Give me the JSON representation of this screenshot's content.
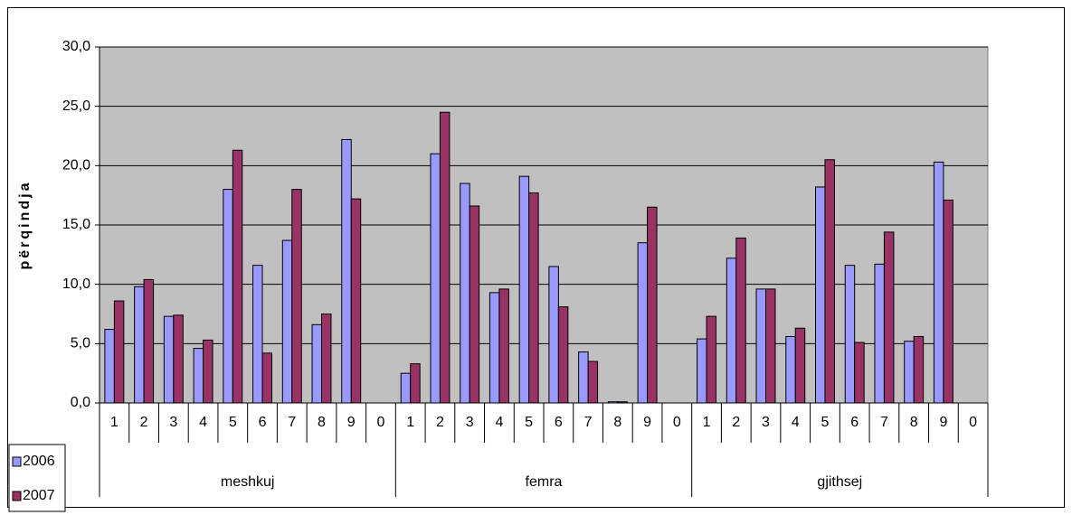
{
  "chart_data": {
    "type": "bar",
    "y_label": "përqindja",
    "categories": [
      "1",
      "2",
      "3",
      "4",
      "5",
      "6",
      "7",
      "8",
      "9",
      "0",
      "1",
      "2",
      "3",
      "4",
      "5",
      "6",
      "7",
      "8",
      "9",
      "0",
      "1",
      "2",
      "3",
      "4",
      "5",
      "6",
      "7",
      "8",
      "9",
      "0"
    ],
    "groups": [
      "meshkuj",
      "femra",
      "gjithsej"
    ],
    "series": [
      {
        "name": "2006",
        "color": "#9999ff",
        "values": [
          6.2,
          9.8,
          7.3,
          4.6,
          18.0,
          11.6,
          13.7,
          6.6,
          22.2,
          0,
          2.5,
          21.0,
          18.5,
          9.3,
          19.1,
          11.5,
          4.3,
          0.1,
          13.5,
          0,
          5.4,
          12.2,
          9.6,
          5.6,
          18.2,
          11.6,
          11.7,
          5.2,
          20.3,
          0
        ]
      },
      {
        "name": "2007",
        "color": "#993366",
        "values": [
          8.6,
          10.4,
          7.4,
          5.3,
          21.3,
          4.2,
          18.0,
          7.5,
          17.2,
          0,
          3.3,
          24.5,
          16.6,
          9.6,
          17.7,
          8.1,
          3.5,
          0.1,
          16.5,
          0,
          7.3,
          13.9,
          9.6,
          6.3,
          20.5,
          5.1,
          14.4,
          5.6,
          17.1,
          0
        ]
      }
    ],
    "ylim": [
      0,
      30
    ],
    "yticks": [
      {
        "value": 0,
        "label": "0,0"
      },
      {
        "value": 5,
        "label": "5,0"
      },
      {
        "value": 10,
        "label": "10,0"
      },
      {
        "value": 15,
        "label": "15,0"
      },
      {
        "value": 20,
        "label": "20,0"
      },
      {
        "value": 25,
        "label": "25,0"
      },
      {
        "value": 30,
        "label": "30,0"
      }
    ],
    "grid": true,
    "plot_background": "#c0c0c0",
    "legend": "bottom-left"
  }
}
